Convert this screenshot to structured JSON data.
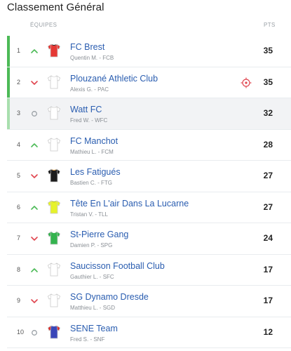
{
  "page": {
    "title": "Classement Général"
  },
  "columns": {
    "teams": "ÉQUIPES",
    "points": "PTS"
  },
  "colors": {
    "up": "#4cba57",
    "down": "#e0454f",
    "neutral": "#9aa0a6",
    "link": "#2a5db0",
    "qualified": "#4cba57",
    "qualified_light": "#a9dfae"
  },
  "rows": [
    {
      "rank": "1",
      "trend": "up",
      "team": "FC Brest",
      "manager": "Quentin M. - FCB",
      "points": "35",
      "shirt": "red-shirt",
      "bar": "green",
      "shaded": false
    },
    {
      "rank": "2",
      "trend": "down",
      "team": "Plouzané Athletic Club",
      "manager": "Alexis G. - PAC",
      "points": "35",
      "shirt": "white-shirt",
      "bar": "green",
      "shaded": false,
      "badge": "target-icon"
    },
    {
      "rank": "3",
      "trend": "neutral",
      "team": "Watt FC",
      "manager": "Fred W. - WFC",
      "points": "32",
      "shirt": "white-shirt",
      "bar": "lightgreen",
      "shaded": true
    },
    {
      "rank": "4",
      "trend": "up",
      "team": "FC Manchot",
      "manager": "Mathieu L. - FCM",
      "points": "28",
      "shirt": "white-shirt",
      "bar": "none",
      "shaded": false
    },
    {
      "rank": "5",
      "trend": "down",
      "team": "Les Fatigués",
      "manager": "Bastien C. - FTG",
      "points": "27",
      "shirt": "black-shirt",
      "bar": "none",
      "shaded": false
    },
    {
      "rank": "6",
      "trend": "up",
      "team": "Tête En L'air Dans La Lucarne",
      "manager": "Tristan V. - TLL",
      "points": "27",
      "shirt": "yellow-shirt",
      "bar": "none",
      "shaded": false
    },
    {
      "rank": "7",
      "trend": "down",
      "team": "St-Pierre Gang",
      "manager": "Damien P. - SPG",
      "points": "24",
      "shirt": "green-shirt",
      "bar": "none",
      "shaded": false
    },
    {
      "rank": "8",
      "trend": "up",
      "team": "Saucisson Football Club",
      "manager": "Gauthier L. - SFC",
      "points": "17",
      "shirt": "white-shirt",
      "bar": "none",
      "shaded": false
    },
    {
      "rank": "9",
      "trend": "down",
      "team": "SG Dynamo Dresde",
      "manager": "Matthieu L. - SGD",
      "points": "17",
      "shirt": "white-shirt",
      "bar": "none",
      "shaded": false
    },
    {
      "rank": "10",
      "trend": "neutral",
      "team": "SENE Team",
      "manager": "Fred S. - SNF",
      "points": "12",
      "shirt": "blue-red-shirt",
      "bar": "none",
      "shaded": false
    }
  ]
}
